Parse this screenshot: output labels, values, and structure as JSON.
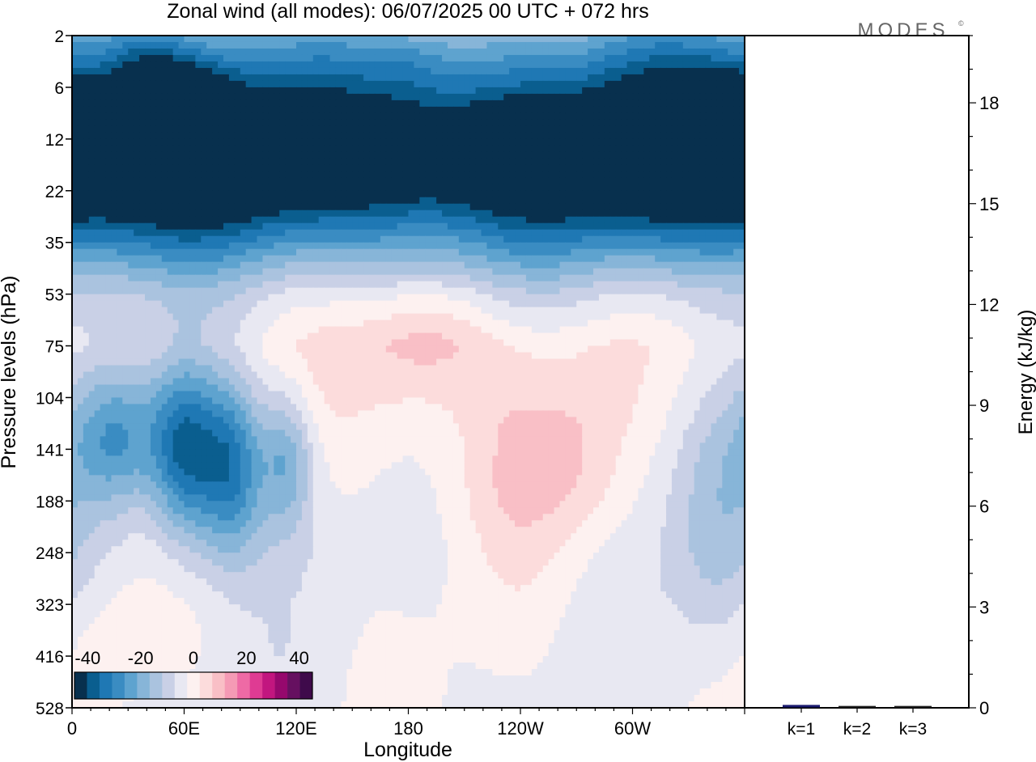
{
  "title": "Zonal wind (all modes):  06/07/2025  00 UTC  + 072 hrs",
  "logo": "MODES",
  "logo_mark": "©",
  "chart_data": [
    {
      "type": "heatmap",
      "xlabel": "Longitude",
      "ylabel": "Pressure levels (hPa)",
      "x_ticks": [
        "0",
        "60E",
        "120E",
        "180",
        "120W",
        "60W"
      ],
      "x_tick_degrees": [
        0,
        60,
        120,
        180,
        240,
        300
      ],
      "x_range": [
        0,
        360
      ],
      "y_ticks": [
        2,
        6,
        12,
        22,
        35,
        53,
        75,
        104,
        141,
        188,
        248,
        323,
        416,
        528
      ],
      "colorbar": {
        "tick_labels": [
          "-40",
          "-20",
          "0",
          "20",
          "40"
        ],
        "tick_values": [
          -40,
          -20,
          0,
          20,
          40
        ],
        "range": [
          -45,
          45
        ],
        "step": 5,
        "colors": [
          "#08304e",
          "#0a5e8f",
          "#1f78b4",
          "#3a8cc2",
          "#5ea3cf",
          "#87b5d8",
          "#aac3df",
          "#c9d0e6",
          "#e8e8f2",
          "#fdf1f0",
          "#fcdcdc",
          "#f9bfc6",
          "#f59ab5",
          "#ee6aa5",
          "#df3b93",
          "#c2167f",
          "#96086d",
          "#661060",
          "#3f0a4b"
        ]
      },
      "anomalies": [
        {
          "lon": 90,
          "level": 12,
          "value": -30,
          "lon_width": 180,
          "level_width": 3.0
        },
        {
          "lon": 300,
          "level": 12,
          "value": -30,
          "lon_width": 160,
          "level_width": 3.0
        },
        {
          "lon": 60,
          "level": 10,
          "value": -36,
          "lon_width": 30,
          "level_width": 1.2
        },
        {
          "lon": 345,
          "level": 11,
          "value": -38,
          "lon_width": 30,
          "level_width": 1.2
        },
        {
          "lon": 40,
          "level": 4,
          "value": -10,
          "lon_width": 30,
          "level_width": 1.2
        },
        {
          "lon": 180,
          "level": 4,
          "value": -6,
          "lon_width": 30,
          "level_width": 1.0
        },
        {
          "lon": 25,
          "level": 130,
          "value": -22,
          "lon_width": 35,
          "level_width": 2.0
        },
        {
          "lon": 60,
          "level": 140,
          "value": -32,
          "lon_width": 25,
          "level_width": 2.5
        },
        {
          "lon": 85,
          "level": 155,
          "value": -30,
          "lon_width": 25,
          "level_width": 2.5
        },
        {
          "lon": 115,
          "level": 150,
          "value": -18,
          "lon_width": 20,
          "level_width": 2.0
        },
        {
          "lon": 345,
          "level": 220,
          "value": -10,
          "lon_width": 35,
          "level_width": 3.5
        },
        {
          "lon": 170,
          "level": 110,
          "value": 7,
          "lon_width": 60,
          "level_width": 3.0
        },
        {
          "lon": 190,
          "level": 70,
          "value": 8,
          "lon_width": 50,
          "level_width": 1.5
        },
        {
          "lon": 240,
          "level": 150,
          "value": 10,
          "lon_width": 50,
          "level_width": 3.0
        },
        {
          "lon": 275,
          "level": 150,
          "value": 7,
          "lon_width": 40,
          "level_width": 2.5
        },
        {
          "lon": 20,
          "level": 400,
          "value": 3,
          "lon_width": 40,
          "level_width": 1.5
        }
      ]
    },
    {
      "type": "bar",
      "ylabel": "Energy (kJ/kg)",
      "categories": [
        "k=1",
        "k=2",
        "k=3"
      ],
      "values": [
        0.05,
        0.02,
        0.02
      ],
      "ylim": [
        0,
        20
      ],
      "y_ticks": [
        0,
        3,
        6,
        9,
        12,
        15,
        18
      ],
      "bar_colors": [
        "#1a1a6e",
        "#222222",
        "#222222"
      ]
    }
  ]
}
